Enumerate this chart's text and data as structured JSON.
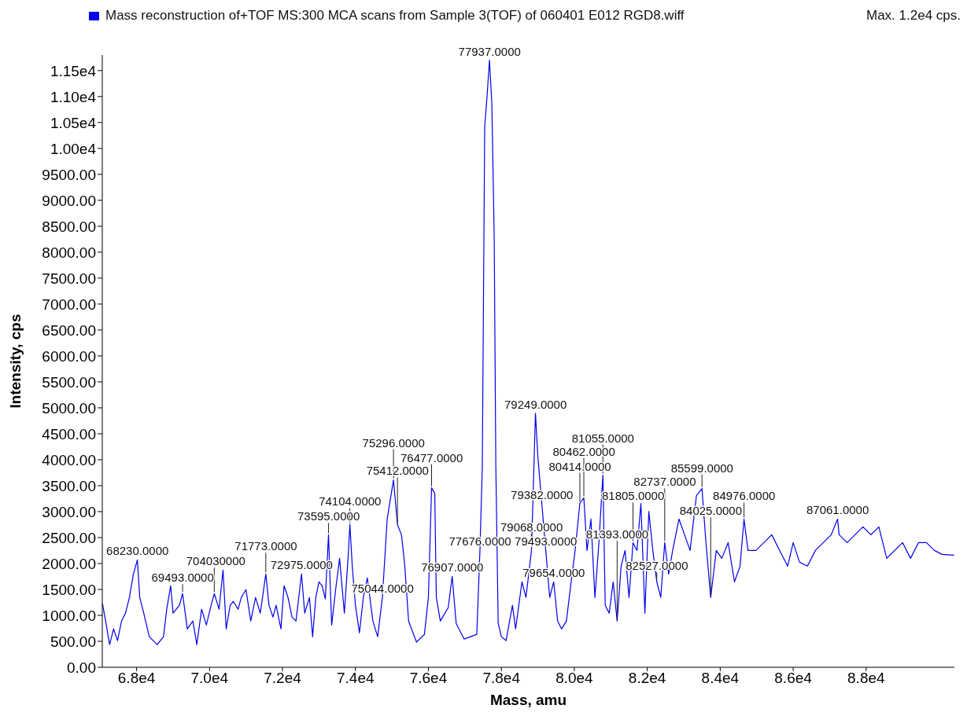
{
  "chart_data": {
    "type": "line",
    "xlabel": "Mass, amu",
    "ylabel": "Intensity, cps",
    "legend": "top left",
    "marker": "none",
    "line_style": "solid",
    "grid": false,
    "xlim": [
      67060,
      90420
    ],
    "ylim": [
      0,
      11800
    ],
    "xticks": [
      {
        "value": 68000,
        "label": "6.8e4"
      },
      {
        "value": 70000,
        "label": "7.0e4"
      },
      {
        "value": 72000,
        "label": "7.2e4"
      },
      {
        "value": 74000,
        "label": "7.4e4"
      },
      {
        "value": 76000,
        "label": "7.6e4"
      },
      {
        "value": 78000,
        "label": "7.8e4"
      },
      {
        "value": 80000,
        "label": "8.0e4"
      },
      {
        "value": 82000,
        "label": "8.2e4"
      },
      {
        "value": 84000,
        "label": "8.4e4"
      },
      {
        "value": 86000,
        "label": "8.6e4"
      },
      {
        "value": 88000,
        "label": "8.8e4"
      }
    ],
    "yticks": [
      {
        "value": 0,
        "label": "0.00"
      },
      {
        "value": 500,
        "label": "500.00"
      },
      {
        "value": 1000,
        "label": "1000.00"
      },
      {
        "value": 1500,
        "label": "1500.00"
      },
      {
        "value": 2000,
        "label": "2000.00"
      },
      {
        "value": 2500,
        "label": "2500.00"
      },
      {
        "value": 3000,
        "label": "3000.00"
      },
      {
        "value": 3500,
        "label": "3500.00"
      },
      {
        "value": 4000,
        "label": "4000.00"
      },
      {
        "value": 4500,
        "label": "4500.00"
      },
      {
        "value": 5000,
        "label": "5000.00"
      },
      {
        "value": 5500,
        "label": "5500.00"
      },
      {
        "value": 6000,
        "label": "6000.00"
      },
      {
        "value": 6500,
        "label": "6500.00"
      },
      {
        "value": 7000,
        "label": "7000.00"
      },
      {
        "value": 7500,
        "label": "7500.00"
      },
      {
        "value": 8000,
        "label": "8000.00"
      },
      {
        "value": 8500,
        "label": "8500.00"
      },
      {
        "value": 9000,
        "label": "9000.00"
      },
      {
        "value": 9500,
        "label": "9500.00"
      },
      {
        "value": 10000,
        "label": "1.00e4"
      },
      {
        "value": 10500,
        "label": "1.05e4"
      },
      {
        "value": 11000,
        "label": "1.10e4"
      },
      {
        "value": 11500,
        "label": "1.15e4"
      }
    ],
    "series": [
      {
        "name": "Mass reconstruction of+TOF MS:300 MCA scans from Sample 3(TOF) of 060401 E012 RGD8.wiff",
        "color": "#0000ee",
        "x": [
          67065,
          67152,
          67261,
          67370,
          67478,
          67587,
          67696,
          67804,
          67913,
          68022,
          68087,
          68196,
          68348,
          68565,
          68739,
          68826,
          68935,
          69000,
          69174,
          69261,
          69391,
          69543,
          69652,
          69783,
          69913,
          70043,
          70130,
          70261,
          70370,
          70457,
          70565,
          70652,
          70783,
          70870,
          71000,
          71130,
          71261,
          71391,
          71543,
          71630,
          71739,
          71826,
          71957,
          72043,
          72152,
          72261,
          72370,
          72522,
          72609,
          72739,
          72826,
          72913,
          73000,
          73087,
          73174,
          73261,
          73348,
          73457,
          73565,
          73696,
          73804,
          73848,
          73913,
          74000,
          74109,
          74217,
          74326,
          74478,
          74609,
          74739,
          74870,
          75043,
          75152,
          75261,
          75348,
          75457,
          75674,
          75891,
          76000,
          76087,
          76174,
          76217,
          76326,
          76543,
          76652,
          76761,
          76978,
          77326,
          77413,
          77478,
          77543,
          77609,
          77674,
          77739,
          77804,
          77848,
          77913,
          78000,
          78130,
          78304,
          78391,
          78565,
          78674,
          78826,
          78935,
          79000,
          79109,
          79217,
          79326,
          79435,
          79543,
          79652,
          79783,
          79913,
          80022,
          80152,
          80261,
          80348,
          80456,
          80565,
          80674,
          80783,
          80848,
          80957,
          81065,
          81174,
          81283,
          81391,
          81500,
          81609,
          81717,
          81826,
          81935,
          82043,
          82152,
          82261,
          82370,
          82478,
          82587,
          82696,
          82870,
          83022,
          83174,
          83348,
          83500,
          83609,
          83739,
          83891,
          84043,
          84217,
          84391,
          84543,
          84652,
          84761,
          84978,
          85196,
          85413,
          85630,
          85848,
          86000,
          86174,
          86391,
          86609,
          86826,
          87043,
          87217,
          87261,
          87478,
          87696,
          87913,
          88130,
          88348,
          88565,
          88783,
          89000,
          89217,
          89435,
          89652,
          89870,
          90087,
          90413
        ],
        "values": [
          1224,
          891,
          438,
          740,
          514,
          891,
          1043,
          1345,
          1798,
          2070,
          1345,
          1043,
          589,
          438,
          589,
          1118,
          1571,
          1043,
          1194,
          1420,
          740,
          891,
          438,
          1118,
          816,
          1194,
          1420,
          1118,
          1874,
          740,
          1194,
          1269,
          1118,
          1345,
          1496,
          891,
          1345,
          1043,
          1798,
          1194,
          967,
          1194,
          740,
          1571,
          1345,
          967,
          891,
          1798,
          1043,
          1345,
          589,
          1345,
          1647,
          1571,
          1315,
          2554,
          816,
          1496,
          2100,
          1043,
          2176,
          2750,
          1949,
          1194,
          665,
          1345,
          1723,
          891,
          589,
          1345,
          2856,
          3611,
          2750,
          2554,
          1995,
          891,
          484,
          635,
          1345,
          3460,
          3354,
          1345,
          891,
          1148,
          1753,
          846,
          544,
          635,
          2251,
          3868,
          10411,
          11015,
          11700,
          10864,
          8295,
          3913,
          846,
          589,
          514,
          1194,
          740,
          1647,
          1345,
          2251,
          4896,
          4065,
          3158,
          2251,
          1345,
          1647,
          891,
          740,
          891,
          1647,
          2251,
          3158,
          3264,
          2251,
          2856,
          1345,
          2402,
          3702,
          1194,
          1043,
          1647,
          891,
          1949,
          2251,
          1345,
          2402,
          2251,
          3158,
          1043,
          3007,
          2251,
          1647,
          1345,
          2402,
          1798,
          2251,
          2856,
          2554,
          2251,
          3309,
          3445,
          2402,
          1345,
          2251,
          2100,
          2402,
          1647,
          1949,
          2856,
          2251,
          2251,
          2402,
          2554,
          2251,
          1949,
          2402,
          2025,
          1949,
          2251,
          2402,
          2554,
          2856,
          2554,
          2402,
          2554,
          2705,
          2554,
          2705,
          2100,
          2251,
          2402,
          2100,
          2402,
          2402,
          2251,
          2176,
          2161
        ]
      }
    ],
    "annotations": [
      "Max. 1.2e4 cps.",
      {
        "text": "68230.0000",
        "x": 68022,
        "y": 2070
      },
      {
        "text": "69493.0000",
        "x": 69261,
        "y": 1420
      },
      {
        "text": "704030000",
        "x": 70130,
        "y": 1420
      },
      {
        "text": "71773.0000",
        "x": 71543,
        "y": 1798
      },
      {
        "text": "72975.0000",
        "x": 72522,
        "y": 1798
      },
      {
        "text": "73595.0000",
        "x": 73261,
        "y": 2554
      },
      {
        "text": "74104.0000",
        "x": 73848,
        "y": 2750
      },
      {
        "text": "75044.0000",
        "x": 74739,
        "y": 1345
      },
      {
        "text": "75296.0000",
        "x": 75043,
        "y": 3611
      },
      {
        "text": "75412.0000",
        "x": 75152,
        "y": 2750
      },
      {
        "text": "76477.0000",
        "x": 76087,
        "y": 3460
      },
      {
        "text": "76907.0000",
        "x": 76652,
        "y": 1753
      },
      {
        "text": "77676.0000",
        "x": 77413,
        "y": 2251
      },
      {
        "text": "77937.0000",
        "x": 77674,
        "y": 11700
      },
      {
        "text": "79068.0000",
        "x": 78826,
        "y": 2251
      },
      {
        "text": "79249.0000",
        "x": 78935,
        "y": 4896
      },
      {
        "text": "79382.0000",
        "x": 79109,
        "y": 3158
      },
      {
        "text": "79493.0000",
        "x": 79217,
        "y": 2251
      },
      {
        "text": "79654.0000",
        "x": 79435,
        "y": 1647
      },
      {
        "text": "80414.0000",
        "x": 80152,
        "y": 3158
      },
      {
        "text": "80462.0000",
        "x": 80261,
        "y": 3264
      },
      {
        "text": "81055.0000",
        "x": 80783,
        "y": 3702
      },
      {
        "text": "81393.0000",
        "x": 81174,
        "y": 891
      },
      {
        "text": "81805.0000",
        "x": 81609,
        "y": 2402
      },
      {
        "text": "82527.0000",
        "x": 82261,
        "y": 1647
      },
      {
        "text": "82737.0000",
        "x": 82478,
        "y": 2402
      },
      {
        "text": "85599.0000",
        "x": 83500,
        "y": 3445
      },
      {
        "text": "84025.0000",
        "x": 83739,
        "y": 1345
      },
      {
        "text": "84976.0000",
        "x": 84652,
        "y": 2856
      },
      {
        "text": "87061.0000",
        "x": 87217,
        "y": 2856
      }
    ]
  }
}
